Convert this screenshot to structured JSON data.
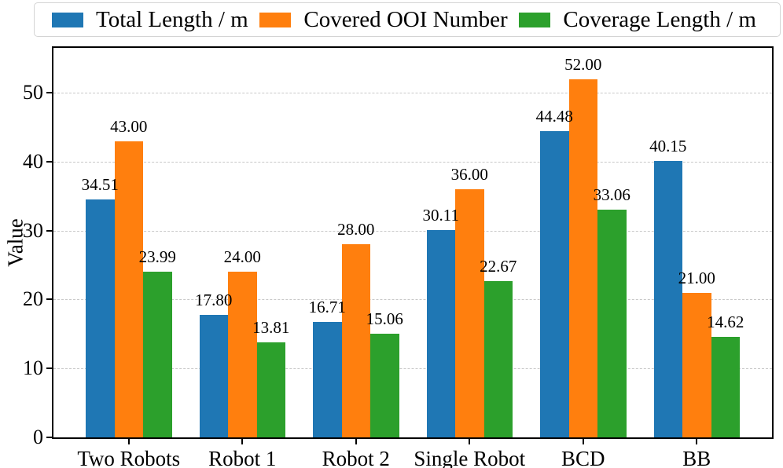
{
  "figure": {
    "background": "#ffffff",
    "axis_color": "#000000",
    "grid_color": "#c8c8c8",
    "legend_border_color": "#d4d4d4"
  },
  "chart_data": {
    "type": "bar",
    "title": "",
    "xlabel": "",
    "ylabel": "Value",
    "categories": [
      "Two Robots",
      "Robot 1",
      "Robot 2",
      "Single Robot",
      "BCD",
      "BB"
    ],
    "series": [
      {
        "name": "Total Length / m",
        "color": "#1f77b4",
        "values": [
          34.51,
          17.8,
          16.71,
          30.11,
          44.48,
          40.15
        ]
      },
      {
        "name": "Covered OOI Number",
        "color": "#ff7f0e",
        "values": [
          43.0,
          24.0,
          28.0,
          36.0,
          52.0,
          21.0
        ]
      },
      {
        "name": "Coverage Length / m",
        "color": "#2ca02c",
        "values": [
          23.99,
          13.81,
          15.06,
          22.67,
          33.06,
          14.62
        ]
      }
    ],
    "yticks": [
      0,
      10,
      20,
      30,
      40,
      50
    ],
    "ylim": [
      0,
      56.5
    ],
    "grid": "horizontal-dashed",
    "legend_position": "top",
    "value_label_format": "2-decimals-above-bar"
  }
}
